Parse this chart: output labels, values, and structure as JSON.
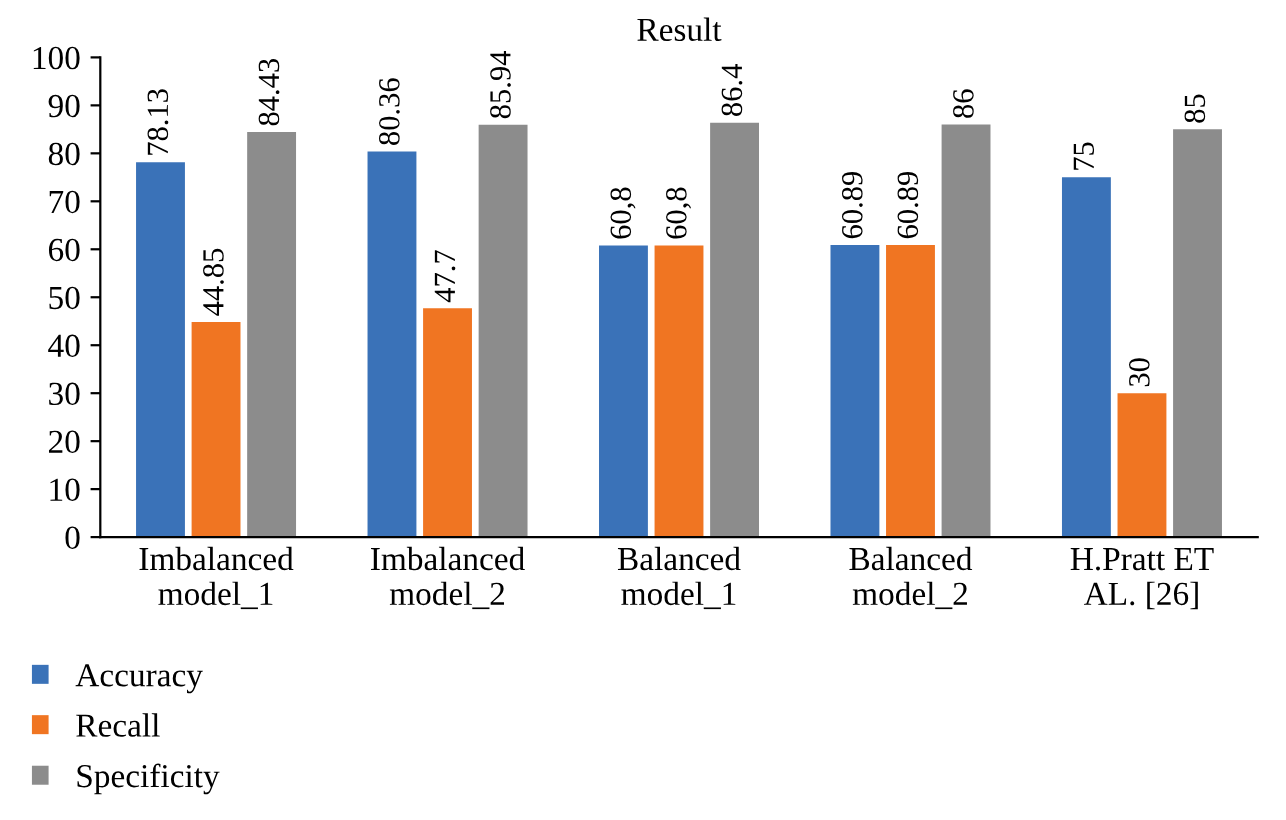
{
  "chart_data": {
    "type": "bar",
    "title": "Result",
    "categories": [
      "Imbalanced\nmodel_1",
      "Imbalanced\nmodel_2",
      "Balanced\nmodel_1",
      "Balanced\nmodel_2",
      "H.Pratt ET\nAL. [26]"
    ],
    "series": [
      {
        "name": "Accuracy",
        "color": "#3a72b8",
        "values": [
          78.13,
          80.36,
          60.8,
          60.89,
          75
        ],
        "value_labels": [
          "78.13",
          "80.36",
          "60,8",
          "60.89",
          "75"
        ]
      },
      {
        "name": "Recall",
        "color": "#f07522",
        "values": [
          44.85,
          47.7,
          60.8,
          60.89,
          30
        ],
        "value_labels": [
          "44.85",
          "47.7",
          "60,8",
          "60.89",
          "30"
        ]
      },
      {
        "name": "Specificity",
        "color": "#8c8c8c",
        "values": [
          84.43,
          85.94,
          86.4,
          86,
          85
        ],
        "value_labels": [
          "84.43",
          "85.94",
          "86.4",
          "86",
          "85"
        ]
      }
    ],
    "ylim": [
      0,
      100
    ],
    "yticks": [
      0,
      10,
      20,
      30,
      40,
      50,
      60,
      70,
      80,
      90,
      100
    ],
    "grid": false,
    "legend": "bottom left"
  }
}
